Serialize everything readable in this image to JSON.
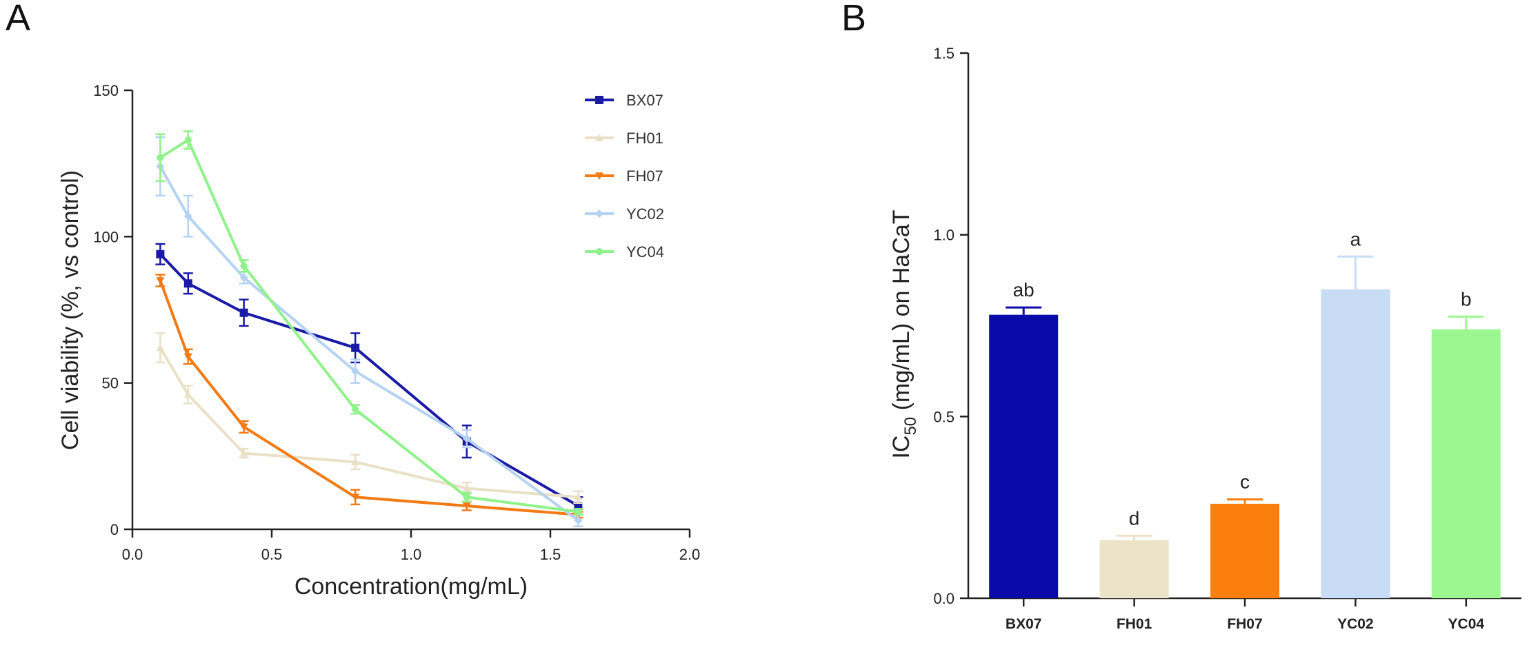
{
  "chart_data": [
    {
      "panel": "A",
      "type": "line",
      "xlabel": "Concentration(mg/mL)",
      "ylabel": "Cell viability (%, vs control)",
      "xlim": [
        0,
        2.0
      ],
      "ylim": [
        0,
        150
      ],
      "xticks": [
        0.0,
        0.5,
        1.0,
        1.5,
        2.0
      ],
      "xtick_labels": [
        "0.0",
        "0.5",
        "1.0",
        "1.5",
        "2.0"
      ],
      "yticks": [
        0,
        50,
        100,
        150
      ],
      "ytick_labels": [
        "0",
        "50",
        "100",
        "150"
      ],
      "x": [
        0.1,
        0.2,
        0.4,
        0.8,
        1.2,
        1.6
      ],
      "legend_position": "top-right",
      "series": [
        {
          "name": "BX07",
          "color": "#1a1aa6",
          "marker": "square",
          "values": [
            94,
            84,
            74,
            62,
            30,
            8
          ],
          "errors": [
            3.5,
            3.5,
            4.5,
            5,
            5.5,
            3
          ]
        },
        {
          "name": "FH01",
          "color": "#e9e0c6",
          "marker": "triangle",
          "values": [
            62,
            46,
            26,
            23,
            14,
            11
          ],
          "errors": [
            5,
            3,
            1.5,
            2.5,
            2,
            2
          ]
        },
        {
          "name": "FH07",
          "color": "#f37a14",
          "marker": "triangle-down",
          "values": [
            85,
            59,
            35,
            11,
            8,
            5
          ],
          "errors": [
            2,
            2.5,
            2,
            2.5,
            1.5,
            1
          ]
        },
        {
          "name": "YC02",
          "color": "#b6d2f2",
          "marker": "diamond",
          "values": [
            124,
            107,
            86,
            54,
            31,
            3
          ],
          "errors": [
            10,
            7,
            2,
            4,
            3,
            2
          ]
        },
        {
          "name": "YC04",
          "color": "#8ff28a",
          "marker": "circle",
          "values": [
            127,
            133,
            90,
            41,
            11,
            6
          ],
          "errors": [
            8,
            3,
            2,
            1.5,
            1.5,
            1
          ]
        }
      ]
    },
    {
      "panel": "B",
      "type": "bar",
      "xlabel": "",
      "ylabel_main": "IC",
      "ylabel_sub": "50",
      "ylabel_rest": " (mg/mL) on HaCaT",
      "ylim": [
        0,
        1.5
      ],
      "yticks": [
        0.0,
        0.5,
        1.0,
        1.5
      ],
      "ytick_labels": [
        "0.0",
        "0.5",
        "1.0",
        "1.5"
      ],
      "categories": [
        "BX07",
        "FH01",
        "FH07",
        "YC02",
        "YC04"
      ],
      "values": [
        0.78,
        0.16,
        0.26,
        0.85,
        0.74
      ],
      "errors": [
        0.02,
        0.012,
        0.012,
        0.09,
        0.035
      ],
      "colors": [
        "#0a0aa8",
        "#ece4c8",
        "#fb7f0c",
        "#c8dcf5",
        "#9cf791"
      ],
      "significance": [
        "ab",
        "d",
        "c",
        "a",
        "b"
      ]
    }
  ]
}
